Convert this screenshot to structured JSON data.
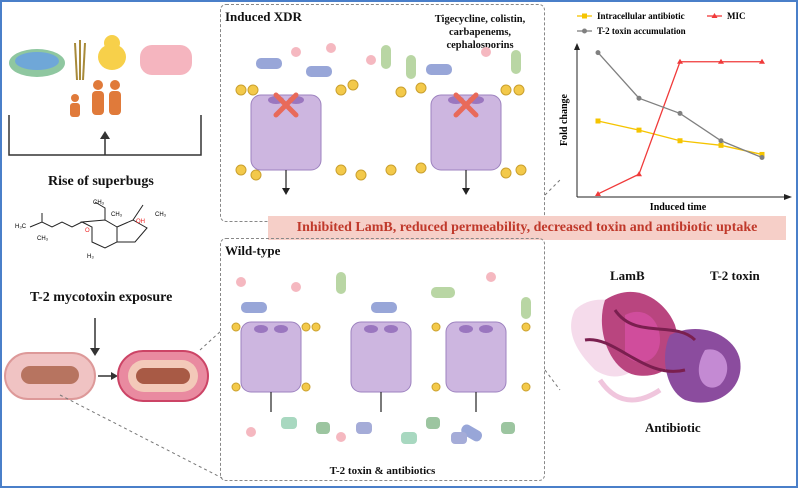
{
  "left": {
    "rise_label": "Rise of superbugs",
    "exposure_label": "T-2 mycotoxin exposure",
    "molecule_labels": {
      "ch3_a": "CH₃",
      "ch3_b": "CH₃",
      "ch3_c": "CH₃",
      "ch3_d": "CH₃",
      "h3c_a": "H₃C",
      "h3": "H₃",
      "oh": "OH",
      "o": "O"
    }
  },
  "xdr_panel": {
    "title": "Induced XDR",
    "antibiotics": "Tigecycline, colistin, carbapenems, cephalosporins"
  },
  "wild_panel": {
    "title": "Wild-type",
    "caption": "T-2 toxin & antibiotics"
  },
  "banner": {
    "text": "Inhibited LamB, reduced permeability, decreased toxin and antibiotic uptake",
    "color": "#f6cfc8"
  },
  "protein": {
    "lamb_label": "LamB",
    "toxin_label": "T-2 toxin",
    "antibiotic_label": "Antibiotic"
  },
  "chart_data": {
    "type": "line",
    "xlabel": "Induced time",
    "ylabel": "Fold change",
    "x": [
      1,
      2,
      3,
      4,
      5
    ],
    "ylim": [
      0,
      10
    ],
    "grid": false,
    "legend_placement": "top",
    "series": [
      {
        "name": "Intracellular antibiotic",
        "color": "#f5c400",
        "marker": "square",
        "values": [
          5.0,
          4.4,
          3.7,
          3.4,
          2.8
        ]
      },
      {
        "name": "MIC",
        "color": "#f03a3a",
        "marker": "triangle",
        "values": [
          0.2,
          1.5,
          8.9,
          8.9,
          8.9
        ]
      },
      {
        "name": "T-2 toxin accumulation",
        "color": "#808080",
        "marker": "circle",
        "values": [
          9.5,
          6.5,
          5.5,
          3.7,
          2.6
        ]
      }
    ]
  }
}
